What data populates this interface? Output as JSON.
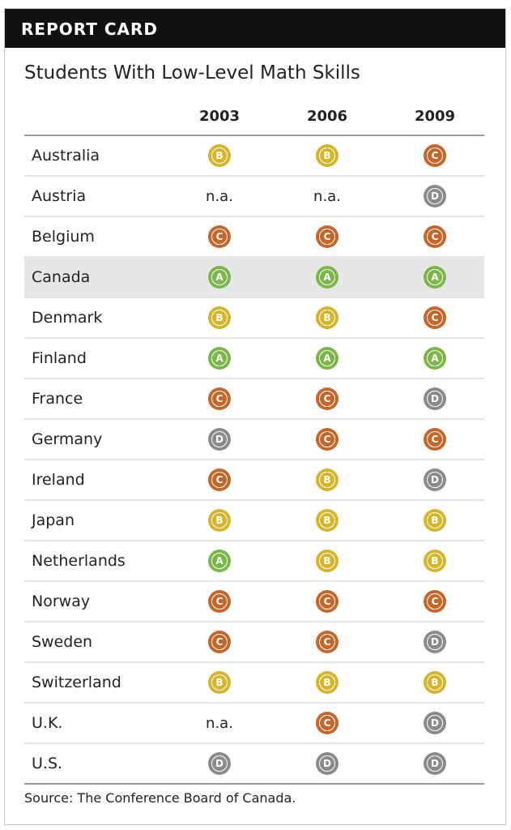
{
  "header": {
    "title": "REPORT CARD"
  },
  "title": "Students With Low-Level Math Skills",
  "years": [
    "2003",
    "2006",
    "2009"
  ],
  "grade_colors": {
    "A": "#7ab648",
    "B": "#d6b52a",
    "C": "#c6672a",
    "D": "#8a8a8a"
  },
  "rows": [
    {
      "country": "Australia",
      "grades": [
        "B",
        "B",
        "C"
      ]
    },
    {
      "country": "Austria",
      "grades": [
        "n.a.",
        "n.a.",
        "D"
      ]
    },
    {
      "country": "Belgium",
      "grades": [
        "C",
        "C",
        "C"
      ]
    },
    {
      "country": "Canada",
      "grades": [
        "A",
        "A",
        "A"
      ],
      "highlight": true
    },
    {
      "country": "Denmark",
      "grades": [
        "B",
        "B",
        "C"
      ]
    },
    {
      "country": "Finland",
      "grades": [
        "A",
        "A",
        "A"
      ]
    },
    {
      "country": "France",
      "grades": [
        "C",
        "C",
        "D"
      ]
    },
    {
      "country": "Germany",
      "grades": [
        "D",
        "C",
        "C"
      ]
    },
    {
      "country": "Ireland",
      "grades": [
        "C",
        "B",
        "D"
      ]
    },
    {
      "country": "Japan",
      "grades": [
        "B",
        "B",
        "B"
      ]
    },
    {
      "country": "Netherlands",
      "grades": [
        "A",
        "B",
        "B"
      ]
    },
    {
      "country": "Norway",
      "grades": [
        "C",
        "C",
        "C"
      ]
    },
    {
      "country": "Sweden",
      "grades": [
        "C",
        "C",
        "D"
      ]
    },
    {
      "country": "Switzerland",
      "grades": [
        "B",
        "B",
        "B"
      ]
    },
    {
      "country": "U.K.",
      "grades": [
        "n.a.",
        "C",
        "D"
      ]
    },
    {
      "country": "U.S.",
      "grades": [
        "D",
        "D",
        "D"
      ]
    }
  ],
  "source": "Source: The Conference Board of Canada."
}
